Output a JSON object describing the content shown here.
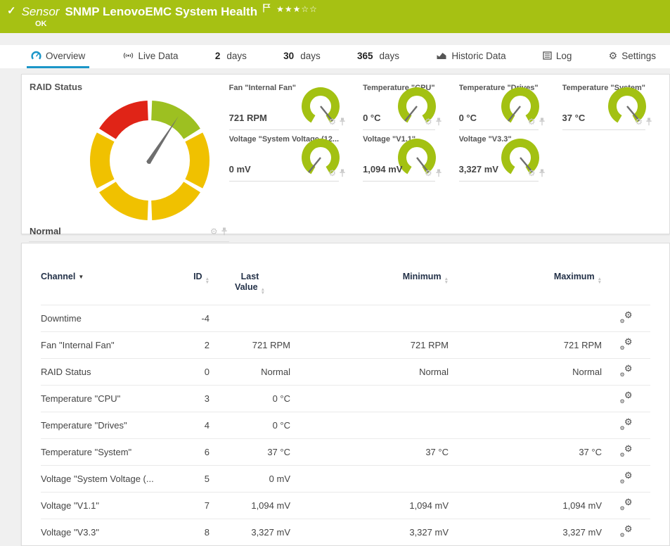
{
  "header": {
    "check": "✓",
    "kind": "Sensor",
    "title": "SNMP LenovoEMC System Health",
    "status": "OK",
    "stars_filled": 3,
    "stars_total": 5,
    "bar_color": "#a6c113"
  },
  "tabs": [
    {
      "icon": "overview-gauge-icon",
      "label": "Overview",
      "active": true
    },
    {
      "icon": "live-data-icon",
      "label": "Live Data"
    },
    {
      "prefix": "2",
      "label": "days"
    },
    {
      "prefix": "30",
      "label": "days"
    },
    {
      "prefix": "365",
      "label": "days"
    },
    {
      "icon": "historic-data-icon",
      "label": "Historic Data"
    },
    {
      "icon": "log-icon",
      "label": "Log"
    },
    {
      "icon": "settings-gear-icon",
      "label": "Settings"
    }
  ],
  "gauges": {
    "arc_color": "#a3c112",
    "needle_color": "#6e6e6e",
    "raid": {
      "label": "RAID Status",
      "value": "Normal",
      "needle_angle": 33,
      "segment_colors": [
        "#9dc021",
        "#f0c100",
        "#f0c100",
        "#f0c100",
        "#f0c100",
        "#e02417"
      ]
    },
    "panels": [
      {
        "label": "Fan \"Internal Fan\"",
        "value": "721 RPM",
        "needle_angle": 141
      },
      {
        "label": "Temperature \"CPU\"",
        "value": "0 °C",
        "needle_angle": 219
      },
      {
        "label": "Temperature \"Drives\"",
        "value": "0 °C",
        "needle_angle": 219
      },
      {
        "label": "Temperature \"System\"",
        "value": "37 °C",
        "needle_angle": 140
      },
      {
        "label": "Voltage \"System Voltage (12...",
        "value": "0 mV",
        "needle_angle": 219
      },
      {
        "label": "Voltage \"V1.1\"",
        "value": "1,094 mV",
        "needle_angle": 142
      },
      {
        "label": "Voltage \"V3.3\"",
        "value": "3,327 mV",
        "needle_angle": 140
      }
    ]
  },
  "table": {
    "headers": {
      "channel": "Channel",
      "id": "ID",
      "last_value_line1": "Last",
      "last_value_line2": "Value",
      "minimum": "Minimum",
      "maximum": "Maximum"
    },
    "rows": [
      {
        "channel": "Downtime",
        "id": "-4",
        "last": "",
        "min": "",
        "max": ""
      },
      {
        "channel": "Fan \"Internal Fan\"",
        "id": "2",
        "last": "721 RPM",
        "min": "721 RPM",
        "max": "721 RPM"
      },
      {
        "channel": "RAID Status",
        "id": "0",
        "last": "Normal",
        "min": "Normal",
        "max": "Normal"
      },
      {
        "channel": "Temperature \"CPU\"",
        "id": "3",
        "last": "0 °C",
        "min": "",
        "max": ""
      },
      {
        "channel": "Temperature \"Drives\"",
        "id": "4",
        "last": "0 °C",
        "min": "",
        "max": ""
      },
      {
        "channel": "Temperature \"System\"",
        "id": "6",
        "last": "37 °C",
        "min": "37 °C",
        "max": "37 °C"
      },
      {
        "channel": "Voltage \"System Voltage (...",
        "id": "5",
        "last": "0 mV",
        "min": "",
        "max": ""
      },
      {
        "channel": "Voltage \"V1.1\"",
        "id": "7",
        "last": "1,094 mV",
        "min": "1,094 mV",
        "max": "1,094 mV"
      },
      {
        "channel": "Voltage \"V3.3\"",
        "id": "8",
        "last": "3,327 mV",
        "min": "3,327 mV",
        "max": "3,327 mV"
      }
    ]
  }
}
